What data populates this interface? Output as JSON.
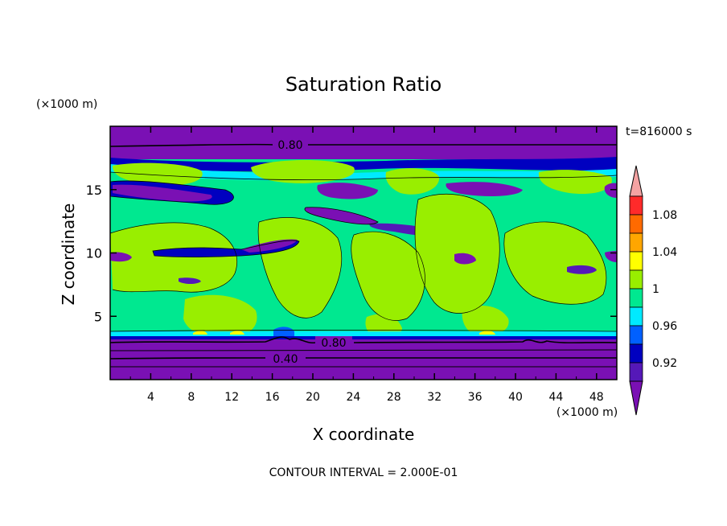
{
  "chart_data": {
    "type": "heatmap",
    "title": "Saturation Ratio",
    "xlabel": "X coordinate",
    "ylabel": "Z coordinate",
    "x_unit": "(×1000 m)",
    "y_unit": "(×1000 m)",
    "time_label": "t=816000 s",
    "footer": "CONTOUR INTERVAL = 2.000E-01",
    "xlim": [
      0,
      50
    ],
    "ylim": [
      0,
      20
    ],
    "x_ticks": [
      "4",
      "8",
      "12",
      "16",
      "20",
      "24",
      "28",
      "32",
      "36",
      "40",
      "44",
      "48"
    ],
    "y_ticks": [
      "5",
      "10",
      "15"
    ],
    "colorbar_labels": [
      "1.08",
      "1.04",
      "1",
      "0.96",
      "0.92"
    ],
    "colorbar_levels": [
      {
        "color": "#f4a3a3",
        "from": 1.1
      },
      {
        "color": "#ff2a2a",
        "from": 1.08,
        "to": 1.1
      },
      {
        "color": "#ff6a00",
        "from": 1.06,
        "to": 1.08
      },
      {
        "color": "#ffa600",
        "from": 1.04,
        "to": 1.06
      },
      {
        "color": "#ffff00",
        "from": 1.02,
        "to": 1.04
      },
      {
        "color": "#99ee00",
        "from": 1.0,
        "to": 1.02
      },
      {
        "color": "#00e890",
        "from": 0.98,
        "to": 1.0
      },
      {
        "color": "#00eaff",
        "from": 0.96,
        "to": 0.98
      },
      {
        "color": "#0060ff",
        "from": 0.94,
        "to": 0.96
      },
      {
        "color": "#0000c0",
        "from": 0.92,
        "to": 0.94
      },
      {
        "color": "#5518b8",
        "from": 0.9,
        "to": 0.92
      },
      {
        "color": "#7a10b4",
        "to": 0.9
      }
    ],
    "contour_labels": [
      "0.80",
      "0.80",
      "0.40"
    ]
  }
}
